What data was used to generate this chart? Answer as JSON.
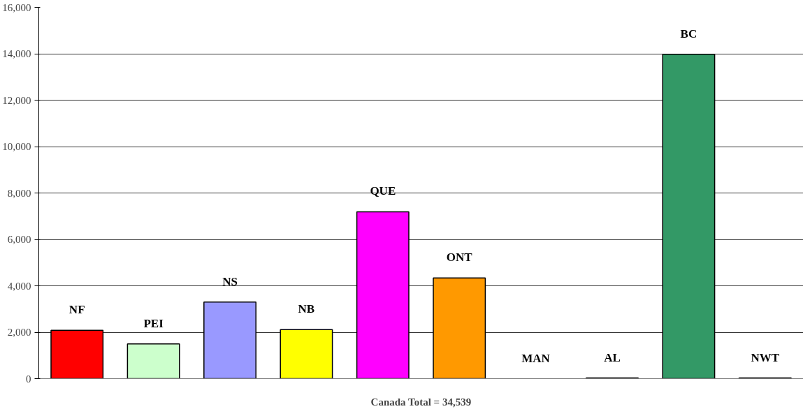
{
  "chart_data": {
    "type": "bar",
    "xlabel": "Canada Total = 34,539",
    "categories": [
      "NF",
      "PEI",
      "NS",
      "NB",
      "QUE",
      "ONT",
      "MAN",
      "AL",
      "BC",
      "NWT"
    ],
    "values": [
      2080,
      1500,
      3300,
      2110,
      7190,
      4340,
      0,
      30,
      13980,
      30
    ],
    "colors": [
      "#ff0000",
      "#ccffcc",
      "#9999ff",
      "#ffff00",
      "#ff00ff",
      "#ff9900",
      null,
      "#000000",
      "#339966",
      "#000000"
    ],
    "ylim": [
      0,
      16000
    ],
    "yticks": [
      {
        "value": 0,
        "label": "0"
      },
      {
        "value": 2000,
        "label": "2,000"
      },
      {
        "value": 4000,
        "label": "4,000"
      },
      {
        "value": 6000,
        "label": "6,000"
      },
      {
        "value": 8000,
        "label": "8,000"
      },
      {
        "value": 10000,
        "label": "10,000"
      },
      {
        "value": 12000,
        "label": "12,000"
      },
      {
        "value": 14000,
        "label": "14,000"
      },
      {
        "value": 16000,
        "label": "16,000"
      }
    ],
    "grid": "y",
    "tick_labels": "y"
  }
}
